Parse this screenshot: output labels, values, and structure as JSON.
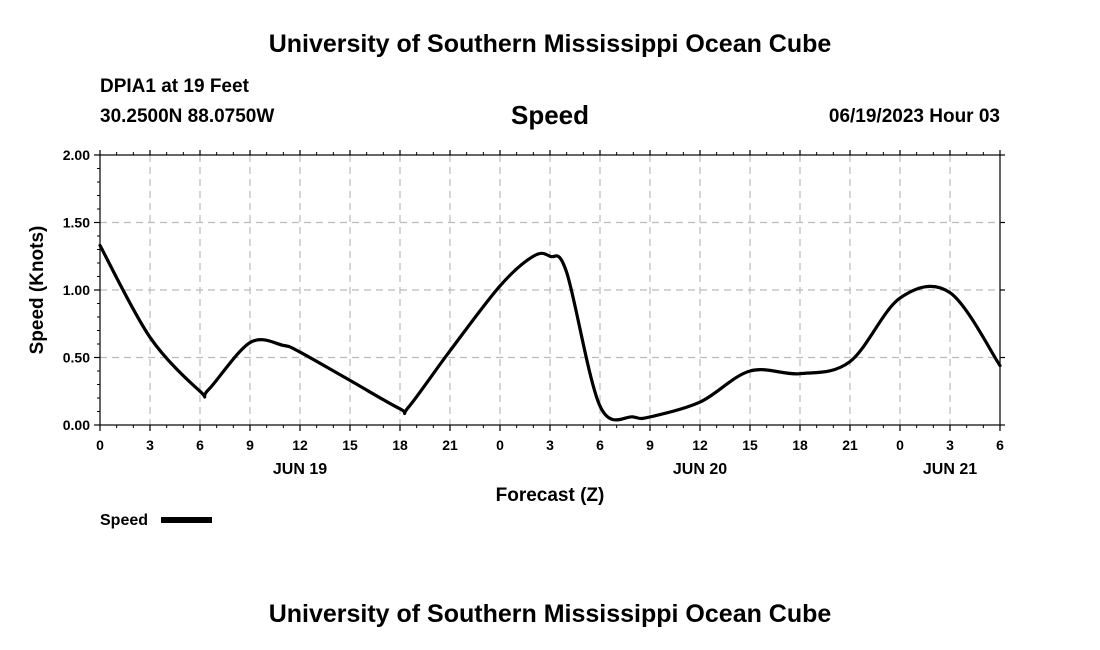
{
  "header": {
    "title": "University of Southern Mississippi Ocean Cube",
    "station": "DPIA1 at 19 Feet",
    "coordinates": "30.2500N  88.0750W",
    "issued": "06/19/2023 Hour 03"
  },
  "footer": {
    "title": "University of Southern Mississippi Ocean Cube"
  },
  "chart_data": {
    "type": "line",
    "title": "Speed",
    "xlabel": "Forecast (Z)",
    "ylabel": "Speed (Knots)",
    "xlim": [
      0,
      54
    ],
    "ylim": [
      0,
      2
    ],
    "grid": true,
    "legend_position": "bottom-left",
    "x_tick_values": [
      0,
      3,
      6,
      9,
      12,
      15,
      18,
      21,
      24,
      27,
      30,
      33,
      36,
      39,
      42,
      45,
      48,
      51,
      54
    ],
    "x_tick_labels": [
      "0",
      "3",
      "6",
      "9",
      "12",
      "15",
      "18",
      "21",
      "0",
      "3",
      "6",
      "9",
      "12",
      "15",
      "18",
      "21",
      "0",
      "3",
      "6"
    ],
    "y_ticks": [
      0,
      0.5,
      1,
      1.5,
      2
    ],
    "y_tick_labels": [
      "0.00",
      "0.50",
      "1.00",
      "1.50",
      "2.00"
    ],
    "day_labels": [
      {
        "x": 12,
        "label": "JUN 19"
      },
      {
        "x": 36,
        "label": "JUN 20"
      },
      {
        "x": 51,
        "label": "JUN 21"
      }
    ],
    "series": [
      {
        "name": "Speed",
        "color": "#000000",
        "x": [
          0,
          3,
          6,
          6.5,
          9,
          11,
          12,
          15,
          18,
          18.5,
          21,
          24,
          26,
          27,
          28,
          30,
          32,
          33,
          36,
          39,
          42,
          45,
          48,
          51,
          54
        ],
        "y": [
          1.33,
          0.65,
          0.25,
          0.26,
          0.61,
          0.59,
          0.54,
          0.33,
          0.12,
          0.13,
          0.55,
          1.03,
          1.25,
          1.25,
          1.13,
          0.14,
          0.06,
          0.06,
          0.17,
          0.4,
          0.38,
          0.47,
          0.94,
          0.98,
          0.44
        ]
      }
    ]
  }
}
